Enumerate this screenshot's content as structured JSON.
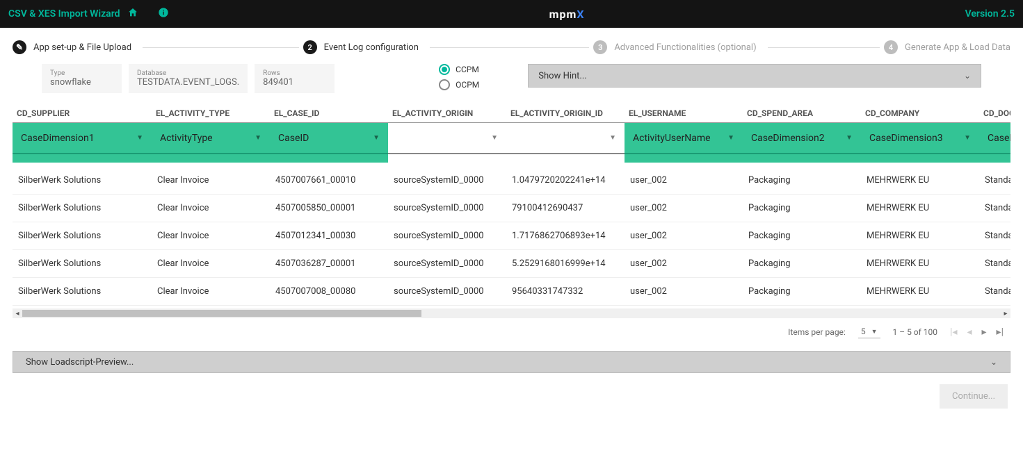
{
  "topbar": {
    "title": "CSV & XES Import Wizard",
    "logo_text": "mpm",
    "logo_suffix": "X",
    "version": "Version 2.5"
  },
  "stepper": {
    "steps": [
      {
        "label": "App set-up & File Upload",
        "state": "done"
      },
      {
        "label": "Event Log configuration",
        "state": "active",
        "num": "2"
      },
      {
        "label": "Advanced Functionalities (optional)",
        "state": "pending",
        "num": "3"
      },
      {
        "label": "Generate App & Load Data",
        "state": "pending",
        "num": "4"
      }
    ]
  },
  "info": {
    "type_label": "Type",
    "type_value": "snowflake",
    "db_label": "Database",
    "db_value": "TESTDATA.EVENT_LOGS.",
    "rows_label": "Rows",
    "rows_value": "849401"
  },
  "radio": {
    "ccpm": "CCPM",
    "ocpm": "OCPM",
    "selected": "ccpm"
  },
  "hint": "Show Hint...",
  "columns": [
    {
      "header": "CD_SUPPLIER",
      "dropdown": "CaseDimension1",
      "filled": true
    },
    {
      "header": "EL_ACTIVITY_TYPE",
      "dropdown": "ActivityType",
      "filled": true
    },
    {
      "header": "EL_CASE_ID",
      "dropdown": "CaseID",
      "filled": true
    },
    {
      "header": "EL_ACTIVITY_ORIGIN",
      "dropdown": "",
      "filled": false
    },
    {
      "header": "EL_ACTIVITY_ORIGIN_ID",
      "dropdown": "",
      "filled": false
    },
    {
      "header": "EL_USERNAME",
      "dropdown": "ActivityUserName",
      "filled": true
    },
    {
      "header": "CD_SPEND_AREA",
      "dropdown": "CaseDimension2",
      "filled": true
    },
    {
      "header": "CD_COMPANY",
      "dropdown": "CaseDimension3",
      "filled": true
    },
    {
      "header": "CD_DOCUM",
      "dropdown": "CaseDime",
      "filled": true
    }
  ],
  "rows": [
    [
      "SilberWerk Solutions",
      "Clear Invoice",
      "4507007661_00010",
      "sourceSystemID_0000",
      "1.0479720202241e+14",
      "user_002",
      "Packaging",
      "MEHRWERK EU",
      "Standard PO"
    ],
    [
      "SilberWerk Solutions",
      "Clear Invoice",
      "4507005850_00001",
      "sourceSystemID_0000",
      "79100412690437",
      "user_002",
      "Packaging",
      "MEHRWERK EU",
      "Standard PO"
    ],
    [
      "SilberWerk Solutions",
      "Clear Invoice",
      "4507012341_00030",
      "sourceSystemID_0000",
      "1.7176862706893e+14",
      "user_002",
      "Packaging",
      "MEHRWERK EU",
      "Standard PO"
    ],
    [
      "SilberWerk Solutions",
      "Clear Invoice",
      "4507036287_00001",
      "sourceSystemID_0000",
      "5.2529168016999e+14",
      "user_002",
      "Packaging",
      "MEHRWERK EU",
      "Standard PO"
    ],
    [
      "SilberWerk Solutions",
      "Clear Invoice",
      "4507007008_00080",
      "sourceSystemID_0000",
      "95640331747332",
      "user_002",
      "Packaging",
      "MEHRWERK EU",
      "Standard PO"
    ]
  ],
  "pagination": {
    "items_per_page_label": "Items per page:",
    "items_per_page": "5",
    "range": "1 – 5 of 100"
  },
  "loadscript": "Show Loadscript-Preview...",
  "continue_label": "Continue...",
  "colors": {
    "accent": "#00b89c",
    "green_fill": "#33c495",
    "topbar_bg": "#141414"
  }
}
